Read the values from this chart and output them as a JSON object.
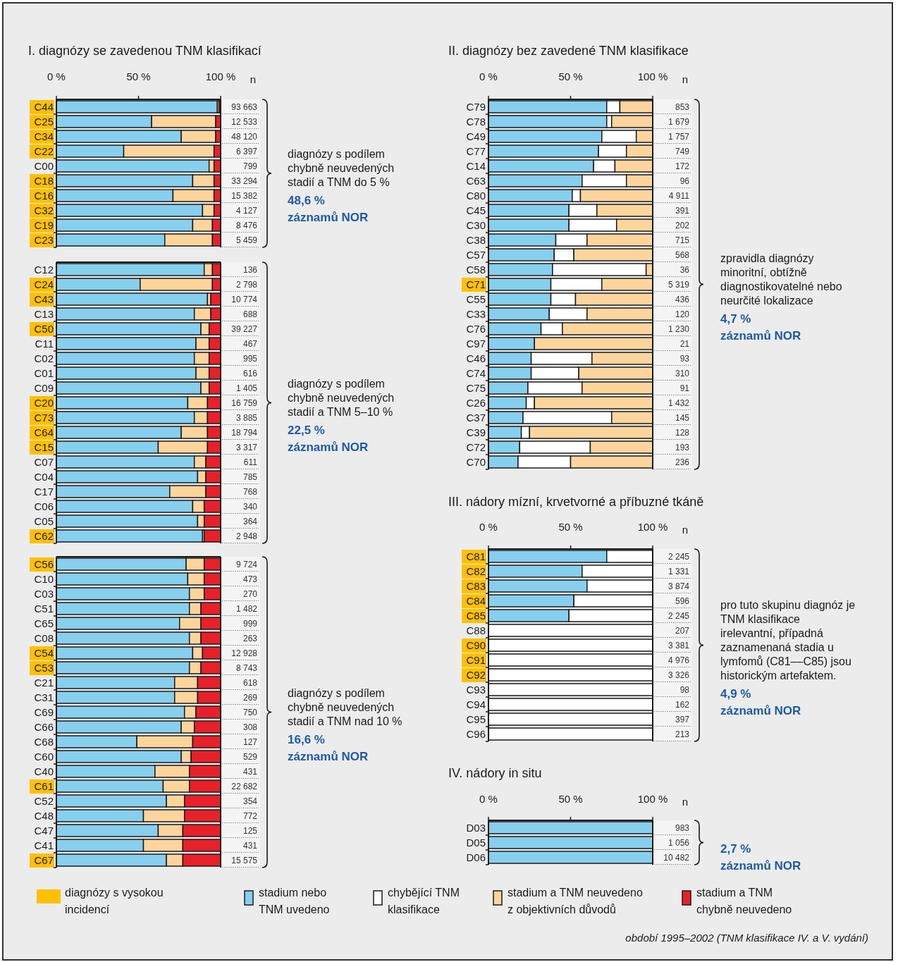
{
  "chart_data": [
    {
      "type": "bar",
      "orientation": "horizontal",
      "stacked": true,
      "title": "I. diagnózy se zavedenou TNM klasifikací",
      "xlabel": "n",
      "legend": "bottom",
      "xlim": [
        0,
        100
      ],
      "xticks": [
        {
          "value": 0,
          "label": "0 %"
        },
        {
          "value": 50,
          "label": "50 %"
        },
        {
          "value": 100,
          "label": "100 %"
        }
      ],
      "categories": [
        "C44",
        "C25",
        "C34",
        "C22",
        "C00",
        "C18",
        "C16",
        "C32",
        "C19",
        "C23"
      ],
      "series": [
        {
          "name": "diagnózy s vysokou incidencí",
          "type": "other",
          "color": "#ffc000",
          "x": [
            "C44",
            "C25",
            "C34",
            "C22",
            "C18",
            "C16",
            "C32",
            "C19",
            "C23"
          ],
          "values": [
            null,
            null,
            null,
            null,
            null,
            null,
            null,
            null,
            null
          ]
        },
        {
          "name": "stadium nebo TNM uvedeno",
          "color": "#87cfef",
          "values": [
            98,
            58,
            76,
            41,
            93,
            83,
            71,
            89,
            83,
            66
          ]
        },
        {
          "name": "chybějící TNM klasifikace",
          "color": "#ffffff",
          "values": [
            0,
            0,
            0,
            0,
            0,
            0,
            0,
            0,
            0,
            0
          ]
        },
        {
          "name": "stadium a TNM neuvedeno z objektivních důvodů",
          "color": "#fdd59c",
          "values": [
            1,
            39,
            21,
            55,
            3,
            13,
            25,
            7,
            12,
            29
          ]
        },
        {
          "name": "stadium a TNM chybně neuvedeno",
          "color": "#e8202a",
          "values": [
            1,
            3,
            3,
            4,
            4,
            4,
            4,
            4,
            5,
            5
          ]
        }
      ],
      "annotations": [
        "diagnózy s podílem chybně neuvedených stadií a TNM do 5 %",
        "48,6 %",
        "záznamů NOR",
        "období 1995–2002 (TNM klasifikace IV. a V. vydání)",
        "93 663",
        "12 533",
        "48 120",
        "6 397",
        "799",
        "33 294",
        "15 382",
        "4 127",
        "8 476",
        "5 459"
      ]
    },
    {
      "type": "bar",
      "orientation": "horizontal",
      "stacked": true,
      "tick_labels": "y",
      "xlim": [
        0,
        100
      ],
      "categories": [
        "C12",
        "C24",
        "C43",
        "C13",
        "C50",
        "C11",
        "C02",
        "C01",
        "C09",
        "C20",
        "C73",
        "C64",
        "C15",
        "C07",
        "C04",
        "C17",
        "C06",
        "C05",
        "C62"
      ],
      "series": [
        {
          "type": "other",
          "color": "#ffc000",
          "x": [
            "C24",
            "C43",
            "C50",
            "C20",
            "C73",
            "C64",
            "C15",
            "C62"
          ],
          "values": [
            null,
            null,
            null,
            null,
            null,
            null,
            null,
            null
          ]
        },
        {
          "color": "#87cfef",
          "values": [
            90,
            51,
            92,
            84,
            88,
            85,
            84,
            85,
            88,
            80,
            84,
            76,
            62,
            84,
            86,
            69,
            83,
            86,
            89
          ]
        },
        {
          "color": "#fdd59c",
          "values": [
            5,
            44,
            2,
            10,
            5,
            8,
            9,
            8,
            5,
            12,
            8,
            16,
            30,
            7,
            5,
            22,
            7,
            4,
            1
          ]
        },
        {
          "color": "#e8202a",
          "values": [
            5,
            5,
            6,
            6,
            7,
            7,
            7,
            7,
            7,
            8,
            8,
            8,
            8,
            9,
            9,
            9,
            10,
            10,
            10
          ]
        }
      ],
      "annotations": [
        "diagnózy s podílem chybně neuvedených stadií a TNM 5–10 %",
        "22,5 %",
        "záznamů NOR",
        "136",
        "2 798",
        "10 774",
        "688",
        "39 227",
        "467",
        "995",
        "616",
        "1 405",
        "16 759",
        "3 885",
        "18 794",
        "3 317",
        "611",
        "785",
        "768",
        "340",
        "364",
        "2 948"
      ]
    },
    {
      "type": "bar",
      "orientation": "horizontal",
      "stacked": true,
      "tick_labels": "y",
      "xlim": [
        0,
        100
      ],
      "categories": [
        "C56",
        "C10",
        "C03",
        "C51",
        "C65",
        "C08",
        "C54",
        "C53",
        "C21",
        "C31",
        "C69",
        "C66",
        "C68",
        "C60",
        "C40",
        "C61",
        "C52",
        "C48",
        "C47",
        "C41",
        "C67"
      ],
      "series": [
        {
          "type": "other",
          "color": "#ffc000",
          "x": [
            "C56",
            "C54",
            "C53",
            "C61",
            "C67"
          ],
          "values": [
            null,
            null,
            null,
            null,
            null
          ]
        },
        {
          "color": "#87cfef",
          "values": [
            79,
            80,
            81,
            81,
            75,
            81,
            83,
            81,
            72,
            72,
            78,
            76,
            49,
            76,
            60,
            65,
            67,
            53,
            62,
            53,
            67
          ]
        },
        {
          "color": "#fdd59c",
          "values": [
            11,
            10,
            9,
            7,
            13,
            7,
            6,
            7,
            14,
            14,
            7,
            8,
            34,
            6,
            21,
            16,
            11,
            25,
            15,
            24,
            10
          ]
        },
        {
          "color": "#e8202a",
          "values": [
            10,
            10,
            10,
            12,
            12,
            12,
            11,
            12,
            14,
            14,
            15,
            16,
            17,
            18,
            19,
            19,
            22,
            22,
            23,
            23,
            23
          ]
        }
      ],
      "annotations": [
        "diagnózy s podílem chybně neuvedených stadií a TNM nad 10 %",
        "16,6 %",
        "záznamů NOR",
        "9 724",
        "473",
        "270",
        "1 482",
        "999",
        "263",
        "12 928",
        "8 743",
        "618",
        "269",
        "750",
        "308",
        "127",
        "529",
        "431",
        "22 682",
        "354",
        "772",
        "125",
        "431",
        "15 575"
      ]
    },
    {
      "type": "bar",
      "orientation": "horizontal",
      "stacked": true,
      "title": "II. diagnózy bez zavedené TNM klasifikace",
      "xlabel": "n",
      "xlim": [
        0,
        100
      ],
      "xticks": [
        {
          "value": 0,
          "label": "0 %"
        },
        {
          "value": 50,
          "label": "50 %"
        },
        {
          "value": 100,
          "label": "100 %"
        }
      ],
      "categories": [
        "C79",
        "C78",
        "C49",
        "C77",
        "C14",
        "C63",
        "C80",
        "C45",
        "C30",
        "C38",
        "C57",
        "C58",
        "C71",
        "C55",
        "C33",
        "C76",
        "C97",
        "C46",
        "C74",
        "C75",
        "C26",
        "C37",
        "C39",
        "C72",
        "C70"
      ],
      "series": [
        {
          "type": "other",
          "color": "#ffc000",
          "x": [
            "C71"
          ],
          "values": [
            null
          ]
        },
        {
          "color": "#87cfef",
          "values": [
            72,
            72,
            69,
            67,
            64,
            57,
            51,
            49,
            49,
            41,
            40,
            39,
            38,
            38,
            37,
            32,
            28,
            26,
            26,
            24,
            23,
            21,
            20,
            19,
            18
          ]
        },
        {
          "color": "#ffffff",
          "values": [
            8,
            3,
            21,
            17,
            13,
            27,
            5,
            17,
            29,
            19,
            12,
            57,
            31,
            15,
            23,
            13,
            0,
            37,
            29,
            33,
            5,
            54,
            5,
            43,
            32
          ]
        },
        {
          "color": "#fdd59c",
          "values": [
            20,
            25,
            10,
            16,
            23,
            16,
            44,
            34,
            22,
            40,
            48,
            4,
            31,
            47,
            40,
            55,
            72,
            37,
            45,
            43,
            72,
            25,
            75,
            38,
            50
          ]
        }
      ],
      "annotations": [
        "zpravidla diagnózy minoritní, obtížně diagnostikovatelné nebo neurčité lokalizace",
        "4,7 %",
        "záznamů NOR",
        "853",
        "1 679",
        "1 757",
        "749",
        "172",
        "96",
        "4 911",
        "391",
        "202",
        "715",
        "568",
        "36",
        "5 319",
        "436",
        "120",
        "1 230",
        "21",
        "93",
        "310",
        "91",
        "1 432",
        "145",
        "128",
        "193",
        "236"
      ]
    },
    {
      "type": "bar",
      "orientation": "horizontal",
      "stacked": true,
      "title": "III. nádory mízní, krvetvorné a příbuzné tkáně",
      "xlabel": "n",
      "xlim": [
        0,
        100
      ],
      "xticks": [
        {
          "value": 0,
          "label": "0 %"
        },
        {
          "value": 50,
          "label": "50 %"
        },
        {
          "value": 100,
          "label": "100 %"
        }
      ],
      "categories": [
        "C81",
        "C82",
        "C83",
        "C84",
        "C85",
        "C88",
        "C90",
        "C91",
        "C92",
        "C93",
        "C94",
        "C95",
        "C96"
      ],
      "series": [
        {
          "type": "other",
          "color": "#ffc000",
          "x": [
            "C81",
            "C82",
            "C83",
            "C84",
            "C85",
            "C90",
            "C91",
            "C92"
          ],
          "values": [
            null,
            null,
            null,
            null,
            null,
            null,
            null,
            null
          ]
        },
        {
          "color": "#87cfef",
          "values": [
            72,
            57,
            60,
            52,
            49,
            0,
            0,
            0,
            0,
            0,
            0,
            0,
            0
          ]
        },
        {
          "color": "#ffffff",
          "values": [
            28,
            43,
            40,
            48,
            51,
            100,
            100,
            100,
            100,
            100,
            100,
            100,
            100
          ]
        }
      ],
      "annotations": [
        "pro tuto skupinu diagnóz je TNM klasifikace irelevantní, případná zaznamenaná stadia u lymfomů (C81––C85) jsou historickým artefaktem.",
        "4,9 %",
        "záznamů NOR",
        "2 245",
        "1 331",
        "3 874",
        "596",
        "2 245",
        "207",
        "3 381",
        "4 976",
        "3 326",
        "98",
        "162",
        "397",
        "213"
      ]
    },
    {
      "type": "bar",
      "orientation": "horizontal",
      "stacked": true,
      "title": "IV. nádory in situ",
      "xlabel": "n",
      "xlim": [
        0,
        100
      ],
      "xticks": [
        {
          "value": 0,
          "label": "0 %"
        },
        {
          "value": 50,
          "label": "50 %"
        },
        {
          "value": 100,
          "label": "100 %"
        }
      ],
      "categories": [
        "D03",
        "D05",
        "D06"
      ],
      "series": [
        {
          "color": "#87cfef",
          "values": [
            100,
            100,
            100
          ]
        }
      ],
      "annotations": [
        "2,7 %",
        "záznamů NOR",
        "983",
        "1 056",
        "10 482"
      ]
    }
  ]
}
